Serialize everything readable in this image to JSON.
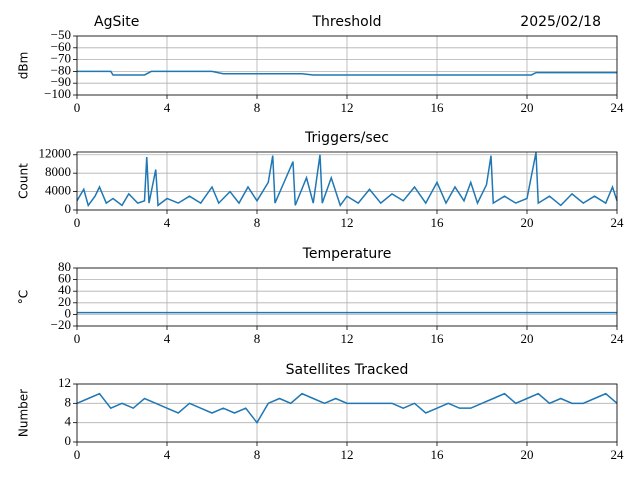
{
  "chart_data": [
    {
      "type": "line",
      "title": "Threshold",
      "header_left": "AgSite",
      "header_right": "2025/02/18",
      "ylabel": "dBm",
      "x": [
        0,
        1,
        1.5,
        1.6,
        3,
        3.3,
        6,
        6.5,
        10,
        10.5,
        20.2,
        20.4,
        24
      ],
      "values": [
        -80,
        -80,
        -80,
        -83,
        -83,
        -80,
        -80,
        -82,
        -82,
        -83,
        -83,
        -81,
        -81
      ],
      "color": "#1f77b4",
      "grid": true,
      "xlim": [
        0,
        24
      ],
      "xticks": [
        0,
        4,
        8,
        12,
        16,
        20,
        24
      ],
      "ylim": [
        -100,
        -50
      ],
      "yticks": [
        {
          "value": -100,
          "label": "−100"
        },
        {
          "value": -90,
          "label": "−90"
        },
        {
          "value": -80,
          "label": "−80"
        },
        {
          "value": -70,
          "label": "−70"
        },
        {
          "value": -60,
          "label": "−60"
        },
        {
          "value": -50,
          "label": "−50"
        }
      ]
    },
    {
      "type": "line",
      "title": "Triggers/sec",
      "ylabel": "Count",
      "x": [
        0,
        0.3,
        0.5,
        0.8,
        1.0,
        1.3,
        1.6,
        2.0,
        2.3,
        2.7,
        3.0,
        3.1,
        3.2,
        3.5,
        3.6,
        4.0,
        4.5,
        5.0,
        5.5,
        6.0,
        6.3,
        6.8,
        7.2,
        7.6,
        8.0,
        8.5,
        8.7,
        8.8,
        9.2,
        9.6,
        9.7,
        10.2,
        10.5,
        10.8,
        10.9,
        11.3,
        11.7,
        12.0,
        12.5,
        13.0,
        13.5,
        14.0,
        14.5,
        15.0,
        15.5,
        16.0,
        16.4,
        16.8,
        17.2,
        17.5,
        17.8,
        18.2,
        18.4,
        18.5,
        19.0,
        19.5,
        20.0,
        20.4,
        20.5,
        21.0,
        21.5,
        22.0,
        22.5,
        23.0,
        23.5,
        23.8,
        24
      ],
      "values": [
        2000,
        4500,
        1000,
        3000,
        5000,
        1500,
        2500,
        1000,
        3500,
        1500,
        2000,
        11500,
        1500,
        8800,
        1000,
        2500,
        1500,
        3000,
        1500,
        5000,
        1500,
        4000,
        1500,
        5000,
        2000,
        6000,
        11800,
        1500,
        6000,
        10500,
        1000,
        7000,
        1500,
        12000,
        1500,
        7000,
        1000,
        3000,
        1500,
        4500,
        1500,
        3500,
        2000,
        5000,
        1500,
        6000,
        1500,
        5000,
        2000,
        6000,
        1500,
        5500,
        11800,
        1500,
        3000,
        1500,
        2500,
        12500,
        1500,
        3000,
        1000,
        3500,
        1500,
        3000,
        1500,
        5000,
        2000
      ],
      "color": "#1f77b4",
      "grid": true,
      "xlim": [
        0,
        24
      ],
      "xticks": [
        0,
        4,
        8,
        12,
        16,
        20,
        24
      ],
      "ylim": [
        0,
        12600
      ],
      "yticks": [
        0,
        4000,
        8000,
        12000
      ]
    },
    {
      "type": "line",
      "title": "Temperature",
      "ylabel": "°C",
      "x": [
        0,
        24
      ],
      "values": [
        3,
        3
      ],
      "color": "#1f77b4",
      "grid": true,
      "xlim": [
        0,
        24
      ],
      "xticks": [
        0,
        4,
        8,
        12,
        16,
        20,
        24
      ],
      "ylim": [
        -20,
        80
      ],
      "yticks": [
        {
          "value": -20,
          "label": "−20"
        },
        0,
        20,
        40,
        60,
        80
      ]
    },
    {
      "type": "line",
      "title": "Satellites Tracked",
      "ylabel": "Number",
      "x": [
        0,
        0.5,
        1,
        1.5,
        2,
        2.5,
        3,
        3.5,
        4,
        4.5,
        5,
        5.5,
        6,
        6.5,
        7,
        7.5,
        8,
        8.5,
        9,
        9.5,
        10,
        10.5,
        11,
        11.5,
        12,
        12.5,
        13,
        13.5,
        14,
        14.5,
        15,
        15.5,
        16,
        16.5,
        17,
        17.5,
        18,
        18.5,
        19,
        19.5,
        20,
        20.5,
        21,
        21.5,
        22,
        22.5,
        23,
        23.5,
        24
      ],
      "values": [
        8,
        9,
        10,
        7,
        8,
        7,
        9,
        8,
        7,
        6,
        8,
        7,
        6,
        7,
        6,
        7,
        4,
        8,
        9,
        8,
        10,
        9,
        8,
        9,
        8,
        8,
        8,
        8,
        8,
        7,
        8,
        6,
        7,
        8,
        7,
        7,
        8,
        9,
        10,
        8,
        9,
        10,
        8,
        9,
        8,
        8,
        9,
        10,
        8
      ],
      "color": "#1f77b4",
      "grid": true,
      "xlim": [
        0,
        24
      ],
      "xticks": [
        0,
        4,
        8,
        12,
        16,
        20,
        24
      ],
      "ylim": [
        0,
        12
      ],
      "yticks": [
        0,
        4,
        8,
        12
      ]
    }
  ]
}
